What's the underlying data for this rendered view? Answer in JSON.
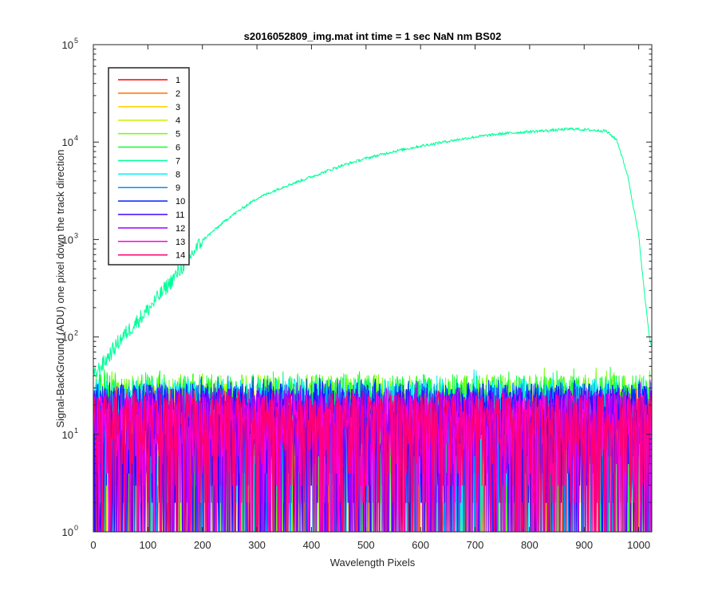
{
  "chart_data": {
    "type": "line",
    "title": "s2016052809_img.mat int time = 1 sec  NaN nm BS02",
    "xlabel": "Wavelength Pixels",
    "ylabel": "Signal-BackGround (ADU) one pixel down the track direction",
    "xlim": [
      0,
      1024
    ],
    "ylim": [
      1,
      100000
    ],
    "yscale": "log",
    "x_ticks": [
      0,
      100,
      200,
      300,
      400,
      500,
      600,
      700,
      800,
      900,
      1000
    ],
    "y_ticks": [
      {
        "base": "10",
        "exp": "0",
        "value": 1
      },
      {
        "base": "10",
        "exp": "1",
        "value": 10
      },
      {
        "base": "10",
        "exp": "2",
        "value": 100
      },
      {
        "base": "10",
        "exp": "3",
        "value": 1000
      },
      {
        "base": "10",
        "exp": "4",
        "value": 10000
      },
      {
        "base": "10",
        "exp": "5",
        "value": 100000
      }
    ],
    "legend_position": "top-left",
    "series": [
      {
        "name": "1",
        "color": "#ff0000",
        "profile": "noise",
        "level_min": 1,
        "level_max": 30
      },
      {
        "name": "2",
        "color": "#ff7000",
        "profile": "noise",
        "level_min": 1,
        "level_max": 30
      },
      {
        "name": "3",
        "color": "#ffd000",
        "profile": "noise",
        "level_min": 1,
        "level_max": 40
      },
      {
        "name": "4",
        "color": "#c8f000",
        "profile": "noise",
        "level_min": 1,
        "level_max": 45
      },
      {
        "name": "5",
        "color": "#70ff00",
        "profile": "noise",
        "level_min": 1,
        "level_max": 55
      },
      {
        "name": "6",
        "color": "#10ff30",
        "profile": "noise",
        "level_min": 1,
        "level_max": 55
      },
      {
        "name": "7",
        "color": "#00ff99",
        "profile": "spectrum",
        "points": [
          [
            1,
            40
          ],
          [
            20,
            55
          ],
          [
            50,
            95
          ],
          [
            100,
            190
          ],
          [
            150,
            420
          ],
          [
            200,
            980
          ],
          [
            250,
            1700
          ],
          [
            300,
            2650
          ],
          [
            350,
            3500
          ],
          [
            400,
            4400
          ],
          [
            450,
            5600
          ],
          [
            500,
            6800
          ],
          [
            550,
            8000
          ],
          [
            600,
            9100
          ],
          [
            650,
            10200
          ],
          [
            700,
            11300
          ],
          [
            750,
            12200
          ],
          [
            800,
            12800
          ],
          [
            850,
            13300
          ],
          [
            880,
            13700
          ],
          [
            900,
            13400
          ],
          [
            940,
            13000
          ],
          [
            960,
            10500
          ],
          [
            980,
            4500
          ],
          [
            1000,
            1100
          ],
          [
            1010,
            300
          ],
          [
            1020,
            95
          ],
          [
            1024,
            80
          ]
        ]
      },
      {
        "name": "8",
        "color": "#00f0ff",
        "profile": "noise",
        "level_min": 1,
        "level_max": 50
      },
      {
        "name": "9",
        "color": "#0090ff",
        "profile": "noise",
        "level_min": 1,
        "level_max": 45
      },
      {
        "name": "10",
        "color": "#0020ff",
        "profile": "noise",
        "level_min": 1,
        "level_max": 45
      },
      {
        "name": "11",
        "color": "#4000ff",
        "profile": "noise",
        "level_min": 1,
        "level_max": 40
      },
      {
        "name": "12",
        "color": "#a000ff",
        "profile": "noise",
        "level_min": 1,
        "level_max": 40
      },
      {
        "name": "13",
        "color": "#ff00e0",
        "profile": "noise",
        "level_min": 1,
        "level_max": 35
      },
      {
        "name": "14",
        "color": "#ff0070",
        "profile": "noise",
        "level_min": 1,
        "level_max": 35
      }
    ]
  }
}
